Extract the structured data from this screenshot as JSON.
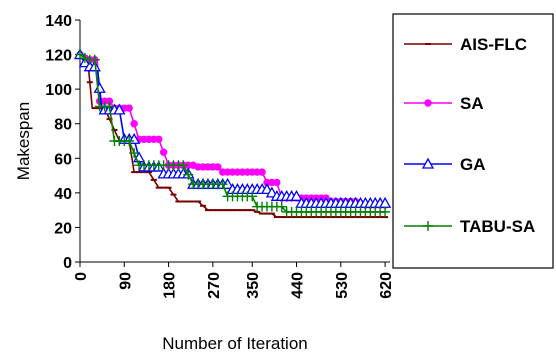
{
  "chart_data": {
    "type": "line",
    "title": "",
    "xlabel": "Number of Iteration",
    "ylabel": "Makespan",
    "xlim": [
      0,
      630
    ],
    "ylim": [
      0,
      140
    ],
    "y_ticks": [
      0,
      20,
      40,
      60,
      80,
      100,
      120,
      140
    ],
    "x_ticks": [
      0,
      90,
      180,
      270,
      350,
      440,
      530,
      620
    ],
    "grid": false,
    "legend": "right",
    "series": [
      {
        "name": "AIS-FLC",
        "color": "#7a0000",
        "marker": "dash",
        "points": [
          [
            0,
            119
          ],
          [
            15,
            119
          ],
          [
            25,
            89
          ],
          [
            45,
            89
          ],
          [
            50,
            89
          ],
          [
            80,
            70
          ],
          [
            100,
            70
          ],
          [
            110,
            52
          ],
          [
            140,
            52
          ],
          [
            160,
            43
          ],
          [
            180,
            43
          ],
          [
            200,
            35
          ],
          [
            240,
            35
          ],
          [
            260,
            30
          ],
          [
            350,
            30
          ],
          [
            370,
            28
          ],
          [
            390,
            28
          ],
          [
            400,
            26
          ],
          [
            620,
            26
          ]
        ]
      },
      {
        "name": "SA",
        "color": "#ff00ff",
        "marker": "circle",
        "points": [
          [
            0,
            120
          ],
          [
            15,
            117
          ],
          [
            35,
            117
          ],
          [
            40,
            93
          ],
          [
            60,
            93
          ],
          [
            70,
            89
          ],
          [
            100,
            89
          ],
          [
            120,
            71
          ],
          [
            160,
            71
          ],
          [
            180,
            56
          ],
          [
            230,
            56
          ],
          [
            240,
            55
          ],
          [
            280,
            55
          ],
          [
            290,
            52
          ],
          [
            370,
            52
          ],
          [
            380,
            46
          ],
          [
            400,
            46
          ],
          [
            410,
            37
          ],
          [
            500,
            37
          ],
          [
            510,
            35
          ],
          [
            560,
            35
          ],
          [
            580,
            33
          ],
          [
            620,
            33
          ]
        ]
      },
      {
        "name": "GA",
        "color": "#0000ff",
        "marker": "triangle",
        "points": [
          [
            0,
            120
          ],
          [
            15,
            113
          ],
          [
            35,
            113
          ],
          [
            45,
            88
          ],
          [
            80,
            88
          ],
          [
            90,
            71
          ],
          [
            110,
            71
          ],
          [
            125,
            55
          ],
          [
            160,
            55
          ],
          [
            170,
            51
          ],
          [
            220,
            51
          ],
          [
            230,
            45
          ],
          [
            300,
            45
          ],
          [
            310,
            42
          ],
          [
            380,
            42
          ],
          [
            400,
            38
          ],
          [
            440,
            38
          ],
          [
            450,
            34
          ],
          [
            620,
            34
          ]
        ]
      },
      {
        "name": "TABU-SA",
        "color": "#008000",
        "marker": "plus",
        "points": [
          [
            0,
            120
          ],
          [
            15,
            117
          ],
          [
            30,
            117
          ],
          [
            40,
            90
          ],
          [
            60,
            90
          ],
          [
            70,
            70
          ],
          [
            100,
            70
          ],
          [
            120,
            56
          ],
          [
            210,
            56
          ],
          [
            230,
            45
          ],
          [
            290,
            45
          ],
          [
            300,
            38
          ],
          [
            350,
            38
          ],
          [
            360,
            32
          ],
          [
            410,
            32
          ],
          [
            420,
            29
          ],
          [
            620,
            29
          ]
        ]
      }
    ]
  }
}
